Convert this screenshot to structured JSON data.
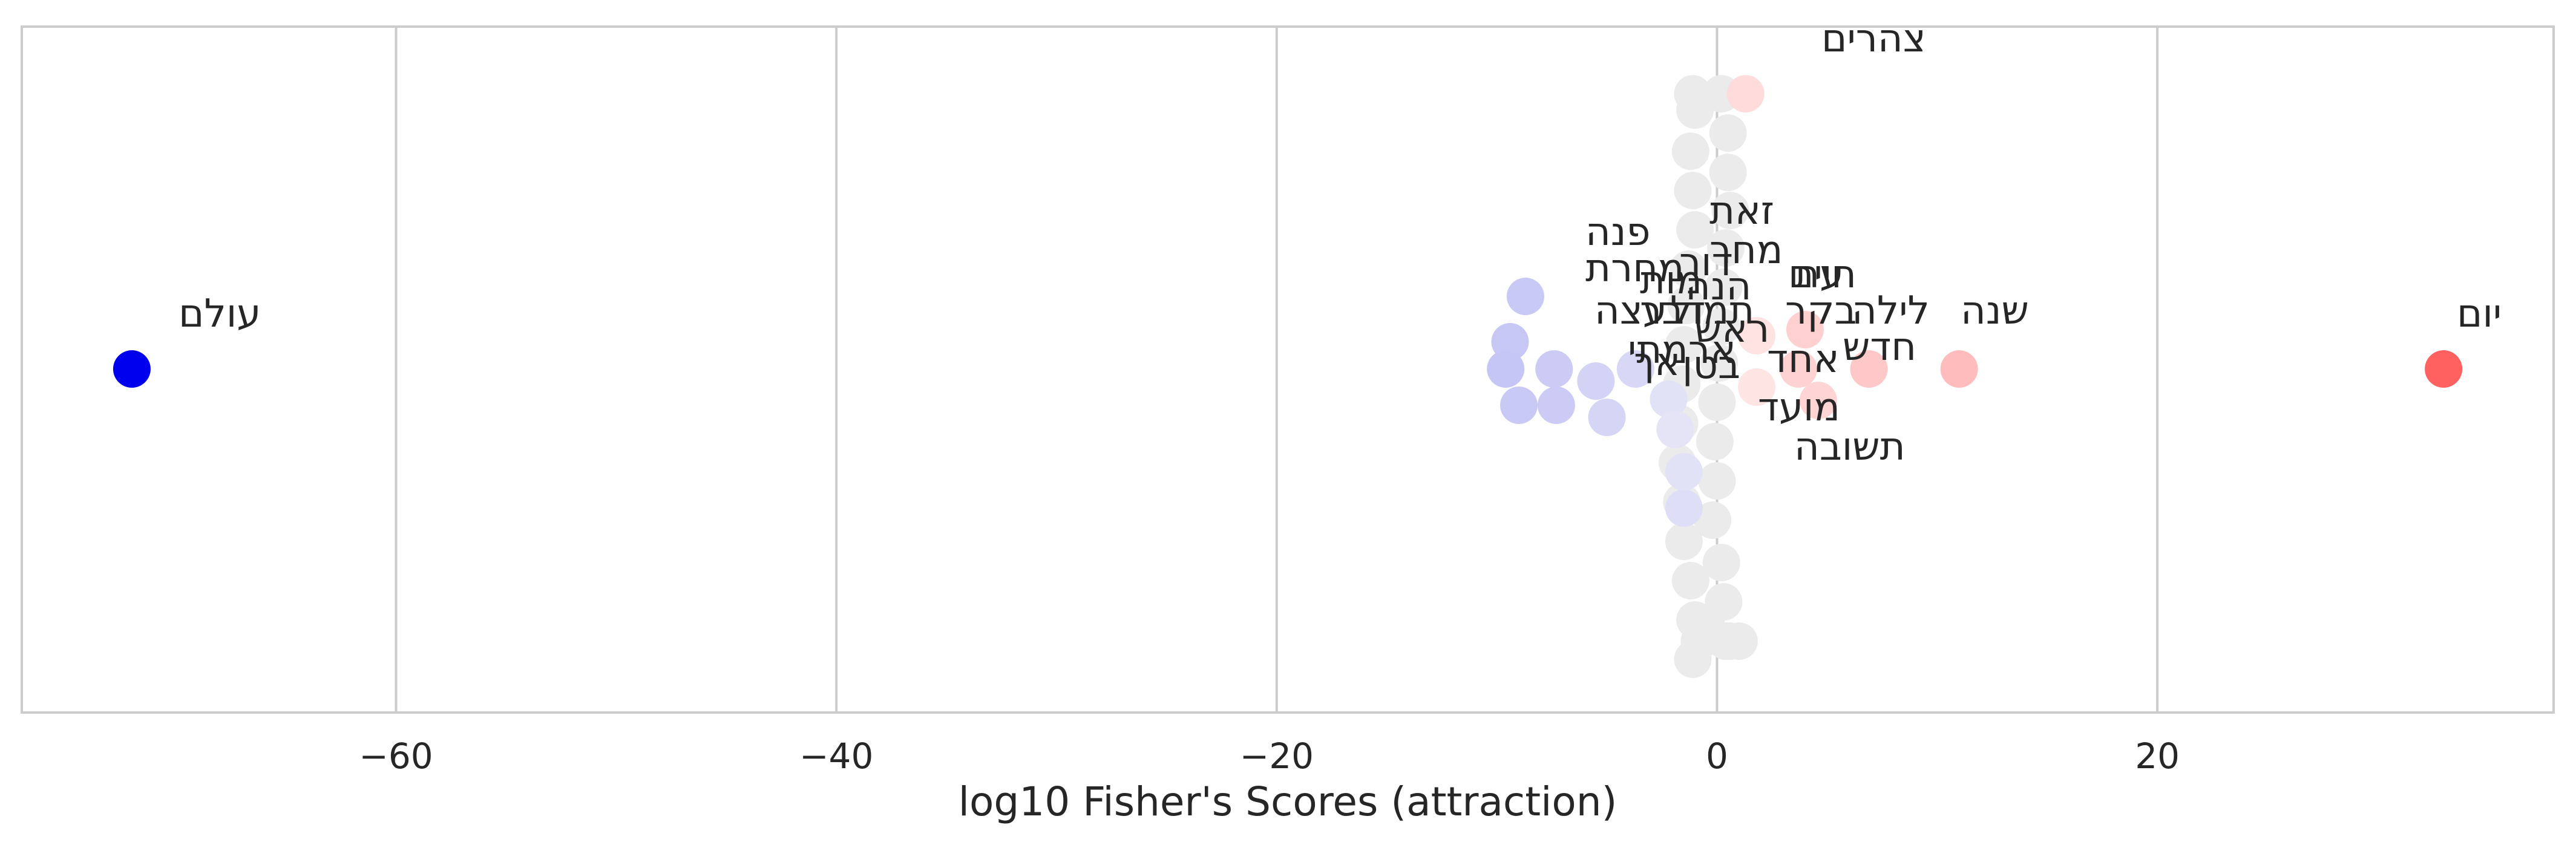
{
  "chart_data": {
    "type": "scatter",
    "title": "",
    "xlabel": "log10 Fisher's Scores (attraction)",
    "ylabel": "",
    "xlim": [
      -77,
      38
    ],
    "x_ticks": [
      {
        "value": -60,
        "label": "−60"
      },
      {
        "value": -40,
        "label": "−40"
      },
      {
        "value": -20,
        "label": "−20"
      },
      {
        "value": 0,
        "label": "0"
      },
      {
        "value": 20,
        "label": "20"
      }
    ],
    "grid": true,
    "legend": "none",
    "colors": {
      "strong_negative": "#0000ee",
      "negative": "#c9c9f7",
      "neutral": "#ebebeb",
      "positive": "#ffd0d0",
      "strong_positive": "#ff6060"
    },
    "labeled_points": [
      {
        "label": "עולם",
        "x": -72,
        "color": "#0000ee"
      },
      {
        "label": "יום",
        "x": 33,
        "color": "#ff6060"
      },
      {
        "label": "שנה",
        "x": 11,
        "color": "#ffbcbc"
      },
      {
        "label": "לילה",
        "x": 7,
        "color": "#ffc4c4"
      },
      {
        "label": "בקר",
        "x": 4,
        "color": "#ffcccc"
      },
      {
        "label": "חדש",
        "x": 4.7,
        "color": "#ffd4d4"
      },
      {
        "label": "עת",
        "x": 2,
        "color": "#ffd8d8"
      },
      {
        "label": "חיים",
        "x": 1.7,
        "color": "#ffdada"
      },
      {
        "label": "אחד",
        "x": 1.5,
        "color": "#ffe0e0"
      },
      {
        "label": "צהרים",
        "x": 1.3,
        "color": "#ffdcdc"
      },
      {
        "label": "זאת",
        "x": -0.5,
        "color": "#ececf3"
      },
      {
        "label": "מחר",
        "x": -0.8,
        "color": "#e8e8f5"
      },
      {
        "label": "הנה",
        "x": -1.2,
        "color": "#e4e4f6"
      },
      {
        "label": "ראש",
        "x": -1.6,
        "color": "#e0e0f6"
      },
      {
        "label": "בטן",
        "x": -1.9,
        "color": "#e0e0f6"
      },
      {
        "label": "מועד",
        "x": -2.0,
        "color": "#dedef6"
      },
      {
        "label": "תשובה",
        "x": -1.7,
        "color": "#dcdcf6"
      },
      {
        "label": "דור",
        "x": -2.3,
        "color": "#dadaf6"
      },
      {
        "label": "אך",
        "x": -3.0,
        "color": "#d8d8f6"
      },
      {
        "label": "מות",
        "x": -3.5,
        "color": "#d6d6f6"
      },
      {
        "label": "תמול",
        "x": -4.0,
        "color": "#d4d4f6"
      },
      {
        "label": "דבר",
        "x": -4.8,
        "color": "#d2d2f6"
      },
      {
        "label": "עצה",
        "x": -6.0,
        "color": "#d0d0f6"
      },
      {
        "label": "ארמתי",
        "x": -7.0,
        "color": "#cecef6"
      },
      {
        "label": "מחרת",
        "x": -8.2,
        "color": "#cbcbf6"
      },
      {
        "label": "פנה",
        "x": -7.8,
        "color": "#cbcbf6"
      }
    ],
    "neutral_points_x": [
      -1.1,
      0.2,
      -1.0,
      0.5,
      -1.2,
      0.5,
      -1.1,
      0.6,
      -1.0,
      0.4,
      -1.3,
      0.3,
      -1.4,
      0.2,
      -1.5,
      0.1,
      -1.6,
      0.0,
      -1.7,
      -0.1,
      -1.8,
      0.0,
      -1.6,
      -0.2,
      -1.5,
      0.2,
      -1.2,
      0.3,
      -1.0,
      0.5,
      -1.1,
      0.4,
      -0.8,
      1.0,
      -0.5,
      0.6
    ]
  }
}
